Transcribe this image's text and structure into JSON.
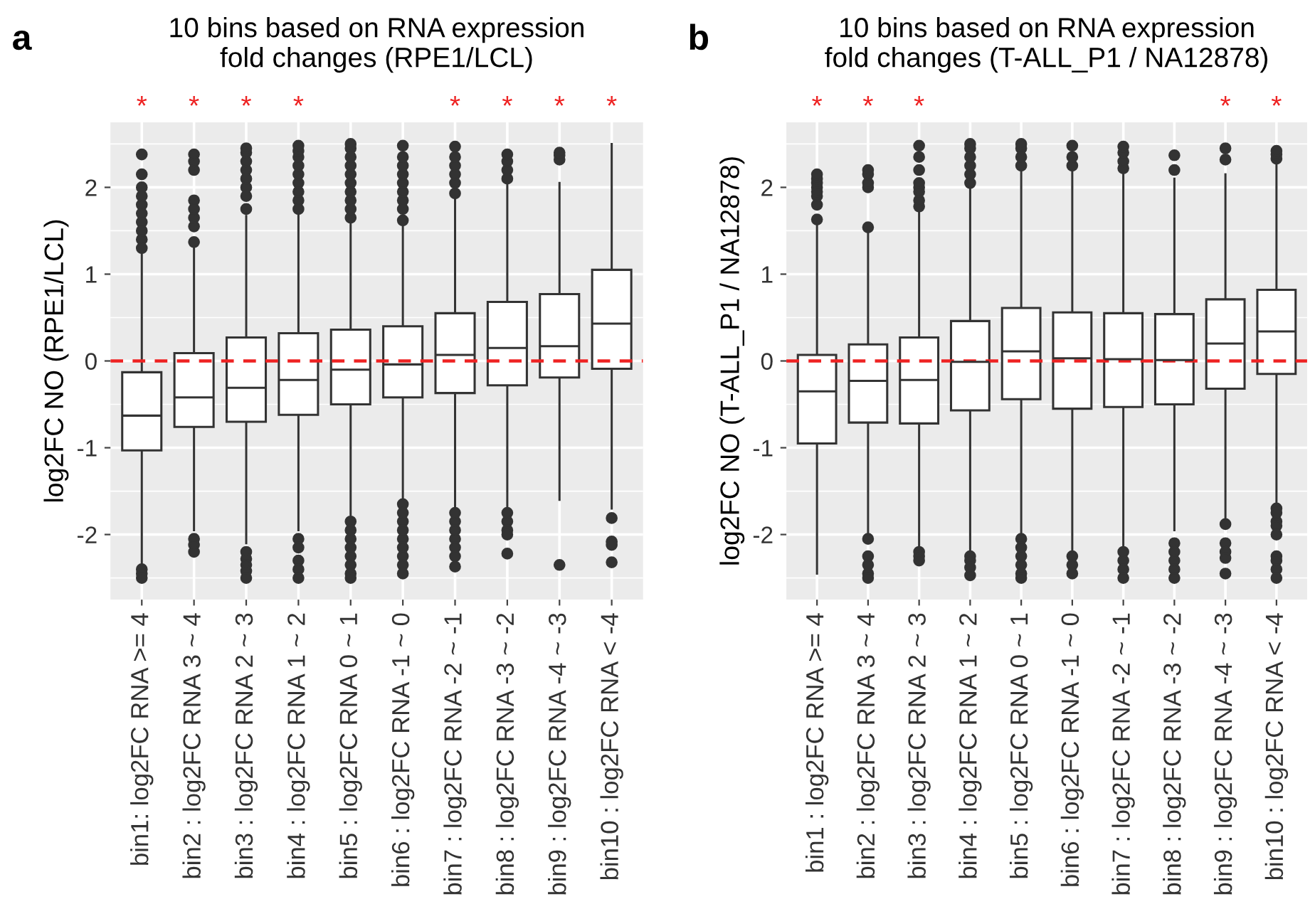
{
  "chart_data": [
    {
      "type": "box",
      "title": "10 bins based on RNA expression\nfold changes (RPE1/LCL)",
      "ylabel": "log2FC NO (RPE1/LCL)",
      "categories": [
        "bin1: log2FC RNA >= 4",
        "bin2 : log2FC RNA 3 ~ 4",
        "bin3 : log2FC RNA 2 ~ 3",
        "bin4 : log2FC RNA 1 ~ 2",
        "bin5 : log2FC RNA 0 ~ 1",
        "bin6 : log2FC RNA -1 ~ 0",
        "bin7 : log2FC RNA -2 ~ -1",
        "bin8 : log2FC RNA -3 ~ -2",
        "bin9 : log2FC RNA -4 ~ -3",
        "bin10 : log2FC RNA < -4"
      ],
      "boxes": [
        {
          "low": -2.35,
          "q1": -1.03,
          "median": -0.63,
          "q3": -0.13,
          "high": 1.22,
          "outliers": [
            1.3,
            1.4,
            1.5,
            1.6,
            1.7,
            1.8,
            1.9,
            2.0,
            2.15,
            2.38,
            -2.4,
            -2.45,
            -2.5
          ]
        },
        {
          "low": -1.95,
          "q1": -0.76,
          "median": -0.42,
          "q3": 0.09,
          "high": 1.3,
          "outliers": [
            1.37,
            1.55,
            1.65,
            1.75,
            1.85,
            2.2,
            2.3,
            2.38,
            -2.05,
            -2.12,
            -2.2
          ]
        },
        {
          "low": -2.1,
          "q1": -0.7,
          "median": -0.31,
          "q3": 0.27,
          "high": 1.67,
          "outliers": [
            1.75,
            1.9,
            2.0,
            2.1,
            2.2,
            2.3,
            2.4,
            2.45,
            -2.2,
            -2.28,
            -2.35,
            -2.42,
            -2.5
          ]
        },
        {
          "low": -1.95,
          "q1": -0.62,
          "median": -0.22,
          "q3": 0.32,
          "high": 1.72,
          "outliers": [
            1.75,
            1.85,
            1.95,
            2.05,
            2.15,
            2.25,
            2.35,
            2.42,
            2.48,
            -2.05,
            -2.15,
            -2.3,
            -2.4,
            -2.5
          ]
        },
        {
          "low": -1.8,
          "q1": -0.5,
          "median": -0.1,
          "q3": 0.36,
          "high": 1.62,
          "outliers": [
            1.65,
            1.75,
            1.85,
            1.95,
            2.05,
            2.15,
            2.25,
            2.35,
            2.45,
            2.5,
            -1.85,
            -1.95,
            -2.05,
            -2.15,
            -2.25,
            -2.35,
            -2.45,
            -2.5
          ]
        },
        {
          "low": -1.6,
          "q1": -0.42,
          "median": -0.04,
          "q3": 0.4,
          "high": 1.6,
          "outliers": [
            1.62,
            1.75,
            1.85,
            1.95,
            2.05,
            2.15,
            2.25,
            2.35,
            2.48,
            -1.65,
            -1.75,
            -1.85,
            -1.95,
            -2.05,
            -2.15,
            -2.25,
            -2.35,
            -2.45
          ]
        },
        {
          "low": -1.7,
          "q1": -0.37,
          "median": 0.07,
          "q3": 0.55,
          "high": 1.9,
          "outliers": [
            1.93,
            2.05,
            2.15,
            2.25,
            2.35,
            2.47,
            -1.75,
            -1.85,
            -1.95,
            -2.05,
            -2.15,
            -2.25,
            -2.37
          ]
        },
        {
          "low": -1.7,
          "q1": -0.28,
          "median": 0.15,
          "q3": 0.68,
          "high": 2.05,
          "outliers": [
            2.1,
            2.2,
            2.3,
            2.38,
            -1.75,
            -1.85,
            -1.95,
            -2.0,
            -2.22
          ]
        },
        {
          "low": -1.6,
          "q1": -0.19,
          "median": 0.17,
          "q3": 0.77,
          "high": 2.05,
          "outliers": [
            2.32,
            2.37,
            2.4,
            -2.35
          ]
        },
        {
          "low": -1.7,
          "q1": -0.09,
          "median": 0.43,
          "q3": 1.05,
          "high": 2.5,
          "outliers": [
            -1.81,
            -2.08,
            -2.12,
            -2.32
          ]
        }
      ],
      "ylim": [
        -2.75,
        2.75
      ],
      "yticks": [
        -2,
        -1,
        0,
        1,
        2
      ],
      "grid": true,
      "ref_lines": [
        {
          "axis": "y",
          "value": 0,
          "color": "#ee2222",
          "line_style": "dashed"
        }
      ],
      "annotations": [
        "a",
        "*",
        "*",
        "*",
        "*",
        null,
        null,
        "*",
        "*",
        "*",
        "*"
      ]
    },
    {
      "type": "box",
      "title": "10 bins based on RNA expression\nfold changes (T-ALL_P1 / NA12878)",
      "ylabel": "log2FC NO (T-ALL_P1 / NA12878)",
      "categories": [
        "bin1 : log2FC RNA >= 4",
        "bin2 : log2FC RNA 3 ~ 4",
        "bin3 : log2FC RNA 2 ~ 3",
        "bin4 : log2FC RNA 1 ~ 2",
        "bin5 : log2FC RNA 0 ~ 1",
        "bin6 : log2FC RNA -1 ~ 0",
        "bin7 : log2FC RNA -2 ~ -1",
        "bin8 : log2FC RNA -3 ~ -2",
        "bin9 : log2FC RNA -4 ~ -3",
        "bin10 : log2FC RNA < -4"
      ],
      "boxes": [
        {
          "low": -2.45,
          "q1": -0.95,
          "median": -0.35,
          "q3": 0.07,
          "high": 1.6,
          "outliers": [
            1.63,
            1.8,
            1.9,
            1.95,
            2.0,
            2.05,
            2.1,
            2.15
          ]
        },
        {
          "low": -2.0,
          "q1": -0.71,
          "median": -0.23,
          "q3": 0.19,
          "high": 1.5,
          "outliers": [
            1.54,
            2.0,
            2.05,
            2.15,
            2.2,
            -2.05,
            -2.25,
            -2.35,
            -2.45,
            -2.5
          ]
        },
        {
          "low": -2.15,
          "q1": -0.72,
          "median": -0.22,
          "q3": 0.27,
          "high": 1.73,
          "outliers": [
            1.78,
            1.85,
            1.95,
            2.0,
            2.05,
            2.2,
            2.35,
            2.48,
            -2.2,
            -2.25,
            -2.3
          ]
        },
        {
          "low": -2.2,
          "q1": -0.57,
          "median": -0.01,
          "q3": 0.46,
          "high": 2.0,
          "outliers": [
            2.05,
            2.15,
            2.25,
            2.35,
            2.45,
            2.5,
            -2.25,
            -2.3,
            -2.38,
            -2.47
          ]
        },
        {
          "low": -2.0,
          "q1": -0.44,
          "median": 0.11,
          "q3": 0.61,
          "high": 2.2,
          "outliers": [
            2.25,
            2.35,
            2.45,
            2.5,
            -2.05,
            -2.15,
            -2.25,
            -2.35,
            -2.45,
            -2.5
          ]
        },
        {
          "low": -2.2,
          "q1": -0.55,
          "median": 0.03,
          "q3": 0.56,
          "high": 2.2,
          "outliers": [
            2.25,
            2.35,
            2.48,
            -2.25,
            -2.35,
            -2.45
          ]
        },
        {
          "low": -2.2,
          "q1": -0.53,
          "median": 0.02,
          "q3": 0.55,
          "high": 2.2,
          "outliers": [
            2.22,
            2.3,
            2.4,
            2.47,
            -2.2,
            -2.3,
            -2.4,
            -2.5
          ]
        },
        {
          "low": -1.95,
          "q1": -0.5,
          "median": 0.01,
          "q3": 0.54,
          "high": 2.1,
          "outliers": [
            2.2,
            2.37,
            -2.1,
            -2.2,
            -2.3,
            -2.4,
            -2.5
          ]
        },
        {
          "low": -1.85,
          "q1": -0.32,
          "median": 0.2,
          "q3": 0.71,
          "high": 2.15,
          "outliers": [
            2.32,
            2.45,
            -1.88,
            -2.1,
            -2.2,
            -2.27,
            -2.45
          ]
        },
        {
          "low": -1.65,
          "q1": -0.15,
          "median": 0.34,
          "q3": 0.82,
          "high": 2.3,
          "outliers": [
            2.33,
            2.38,
            2.42,
            -1.7,
            -1.75,
            -1.85,
            -1.9,
            -2.0,
            -2.25,
            -2.3,
            -2.4,
            -2.5
          ]
        }
      ],
      "ylim": [
        -2.75,
        2.75
      ],
      "yticks": [
        -2,
        -1,
        0,
        1,
        2
      ],
      "grid": true,
      "ref_lines": [
        {
          "axis": "y",
          "value": 0,
          "color": "#ee2222",
          "line_style": "dashed"
        }
      ],
      "annotations": [
        "b",
        "*",
        "*",
        "*",
        null,
        null,
        null,
        null,
        null,
        "*",
        "*"
      ]
    }
  ]
}
